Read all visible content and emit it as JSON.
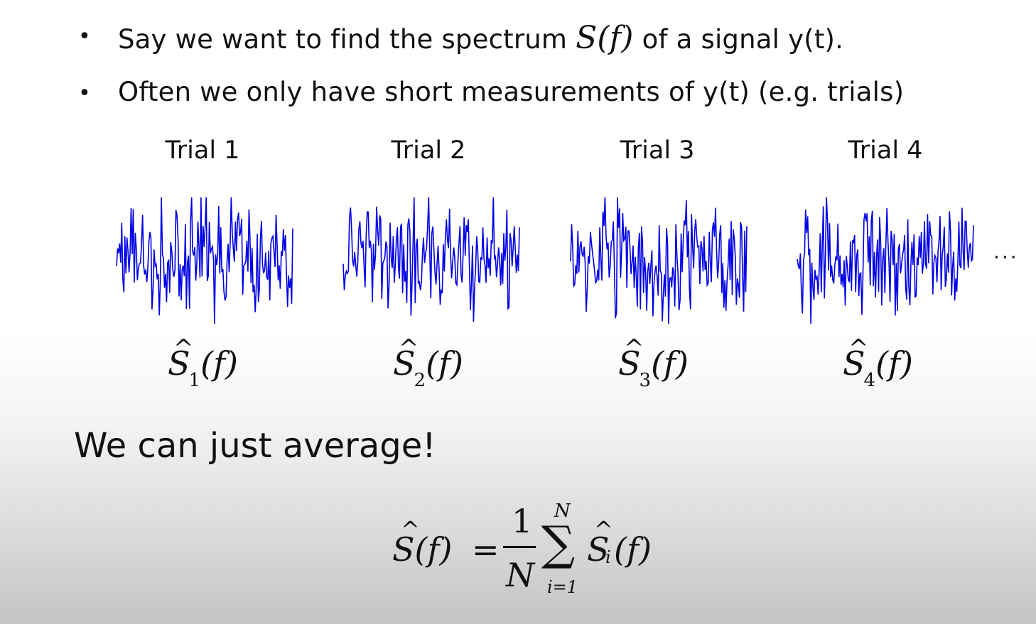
{
  "slide": {
    "bullets": [
      {
        "symbol": "•",
        "before": "Say we want to find the spectrum ",
        "math": "S(f)",
        "after": " of a signal y(t)."
      },
      {
        "symbol": "•",
        "text": "Often we only have short measurements of y(t) (e.g. trials)"
      }
    ],
    "trials": [
      {
        "label": "Trial 1",
        "estimate": {
          "symbol": "S",
          "hat": "^",
          "subscript": "1",
          "arg": "(f)"
        }
      },
      {
        "label": "Trial 2",
        "estimate": {
          "symbol": "S",
          "hat": "^",
          "subscript": "2",
          "arg": "(f)"
        }
      },
      {
        "label": "Trial 3",
        "estimate": {
          "symbol": "S",
          "hat": "^",
          "subscript": "3",
          "arg": "(f)"
        }
      },
      {
        "label": "Trial 4",
        "estimate": {
          "symbol": "S",
          "hat": "^",
          "subscript": "4",
          "arg": "(f)"
        }
      }
    ],
    "ellipsis": "...",
    "conclusion": "We can just average!",
    "formula": {
      "lhs": "S(f)",
      "hat": "^",
      "equals": "=",
      "numerator": "1",
      "denominator": "N",
      "sum_symbol": "∑",
      "upper_limit": "N",
      "lower_limit": "i=1",
      "term_symbol": "S",
      "term_subscript": "i",
      "term_arg": "(f)"
    },
    "colors": {
      "trace": "#0000e6",
      "text": "#111111"
    }
  }
}
